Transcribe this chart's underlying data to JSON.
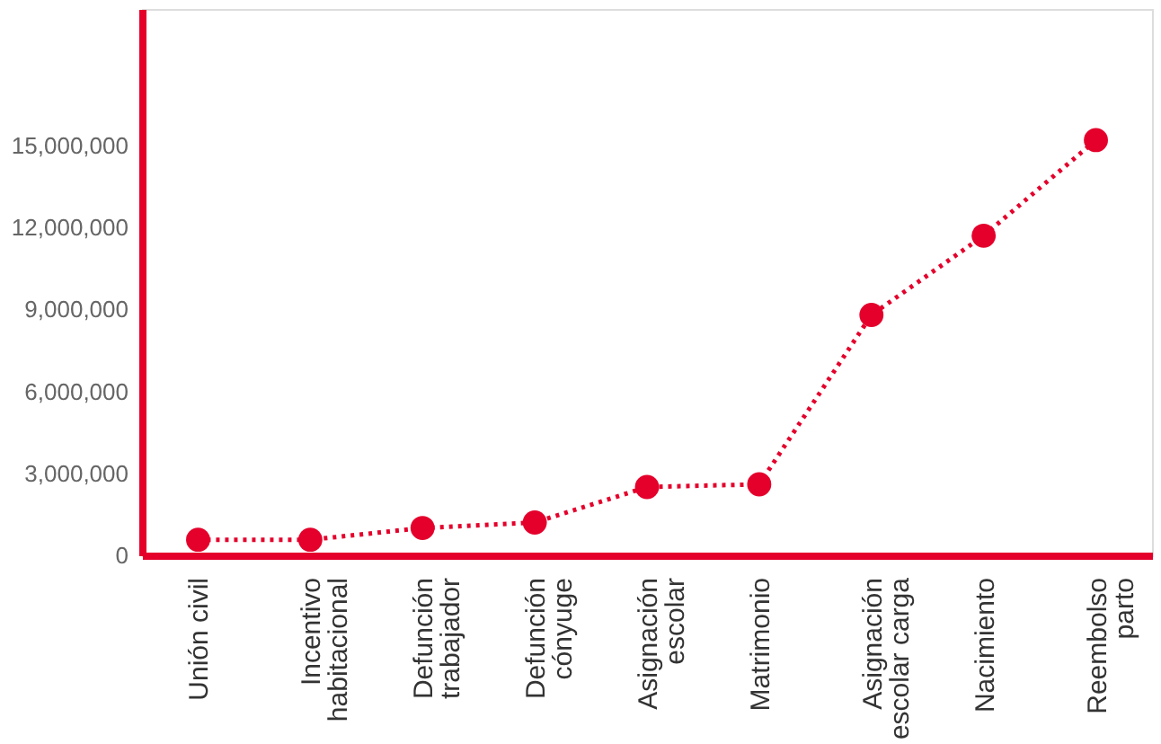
{
  "chart_data": {
    "type": "line",
    "categories": [
      "Unión civil",
      "Incentivo\nhabitacional",
      "Defunción\ntrabajador",
      "Defunción\ncónyuge",
      "Asignación\nescolar",
      "Matrimonio",
      "Asignación\nescolar carga",
      "Nacimiento",
      "Reembolso\nparto"
    ],
    "series": [
      {
        "color": "#e4002b",
        "values": [
          570000,
          570000,
          1000000,
          1200000,
          2500000,
          2600000,
          8800000,
          11700000,
          15200000
        ]
      }
    ],
    "ylim": [
      0,
      20000000
    ],
    "yticks": [
      0,
      {
        "value": 3000000,
        "label": "3,000,000"
      },
      {
        "value": 6000000,
        "label": "6,000,000"
      },
      {
        "value": 9000000,
        "label": "9,000,000"
      },
      {
        "value": 12000000,
        "label": "12,000,000"
      },
      {
        "value": 15000000,
        "label": "15,000,000"
      }
    ],
    "grid": false,
    "marker": "circle",
    "line_style": "dotted"
  }
}
